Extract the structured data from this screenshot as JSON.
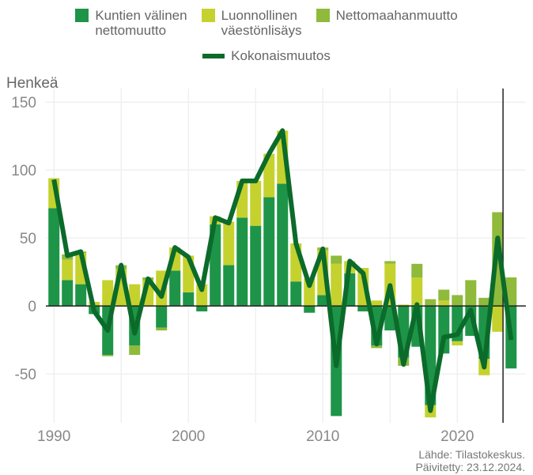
{
  "chart_data": {
    "type": "bar",
    "stacked": true,
    "y_label": "Henkeä",
    "source": "Lähde: Tilastokeskus.",
    "updated": "Päivitetty: 23.12.2024.",
    "x": [
      1990,
      1991,
      1992,
      1993,
      1994,
      1995,
      1996,
      1997,
      1998,
      1999,
      2000,
      2001,
      2002,
      2003,
      2004,
      2005,
      2006,
      2007,
      2008,
      2009,
      2010,
      2011,
      2012,
      2013,
      2014,
      2015,
      2016,
      2017,
      2018,
      2019,
      2020,
      2021,
      2022,
      2023,
      2024
    ],
    "xlim": [
      1989.4,
      2025.1
    ],
    "xticks": [
      1990,
      2000,
      2010,
      2020
    ],
    "xminor": [
      1995,
      2005,
      2015
    ],
    "ylim": [
      -86,
      160
    ],
    "yticks": [
      -50,
      0,
      50,
      100,
      150
    ],
    "grid": true,
    "vline_x": 2023.4,
    "series": [
      {
        "name": "Kuntien välinen\nnettomuutto",
        "color": "#1e9448",
        "type": "bar",
        "values": [
          72,
          19,
          16,
          -6,
          -36,
          0,
          -29,
          0,
          -16,
          26,
          10,
          -4,
          60,
          30,
          65,
          59,
          80,
          90,
          18,
          -5,
          8,
          -81,
          24,
          -4,
          -29,
          -18,
          -38,
          -30,
          -73,
          -35,
          -26,
          -22,
          -39,
          0,
          -46
        ]
      },
      {
        "name": "Luonnollinen\nväestönlisäys",
        "color": "#c5d22e",
        "type": "bar",
        "values": [
          22,
          15,
          23,
          3,
          19,
          27,
          16,
          19,
          26,
          17,
          27,
          16,
          6,
          32,
          27,
          33,
          32,
          39,
          28,
          20,
          33,
          31,
          9,
          28,
          4,
          31,
          1,
          21,
          -9,
          4,
          -3,
          0,
          -12,
          -19,
          0
        ]
      },
      {
        "name": "Nettomaahanmuutto",
        "color": "#8fba3c",
        "type": "bar",
        "values": [
          0,
          4,
          1,
          0,
          -1,
          3,
          -7,
          2,
          -2,
          0,
          0,
          0,
          0,
          0,
          0,
          0,
          0,
          0,
          0,
          0,
          2,
          6,
          0,
          0,
          -2,
          2,
          -6,
          10,
          5,
          8,
          8,
          19,
          6,
          69,
          21
        ]
      },
      {
        "name": "Kokonaismuutos",
        "color": "#0b6b2a",
        "type": "line",
        "values": [
          93,
          37,
          40,
          -4,
          -18,
          30,
          -20,
          20,
          7,
          43,
          36,
          12,
          65,
          61,
          92,
          92,
          112,
          129,
          46,
          15,
          42,
          -44,
          33,
          24,
          -28,
          15,
          -43,
          1,
          -77,
          -23,
          -21,
          -3,
          -45,
          50,
          -25
        ]
      }
    ]
  }
}
